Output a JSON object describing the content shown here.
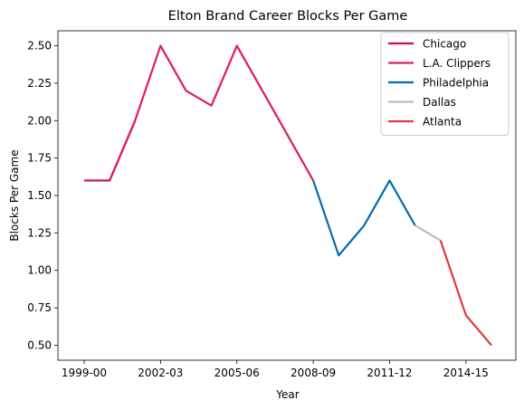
{
  "chart_data": {
    "type": "line",
    "title": "Elton Brand Career Blocks Per Game",
    "xlabel": "Year",
    "ylabel": "Blocks Per Game",
    "ylim": [
      0.4,
      2.6
    ],
    "grid": false,
    "legend_position": "top-right",
    "x_tick_labels": [
      "1999-00",
      "2002-03",
      "2005-06",
      "2008-09",
      "2011-12",
      "2014-15"
    ],
    "y_tick_labels": [
      "0.50",
      "0.75",
      "1.00",
      "1.25",
      "1.50",
      "1.75",
      "2.00",
      "2.25",
      "2.50"
    ],
    "seasons": [
      "1999-00",
      "2000-01",
      "2001-02",
      "2002-03",
      "2003-04",
      "2004-05",
      "2005-06",
      "2006-07",
      "2007-08",
      "2008-09",
      "2009-10",
      "2010-11",
      "2011-12",
      "2012-13",
      "2013-14",
      "2014-15",
      "2015-16"
    ],
    "series": [
      {
        "name": "Chicago",
        "color": "#c8103e",
        "x": [
          "1999-00",
          "2000-01",
          "2001-02"
        ],
        "values": [
          1.6,
          1.6,
          2.0
        ]
      },
      {
        "name": "L.A. Clippers",
        "color": "#e31a59",
        "x": [
          "2000-01",
          "2001-02",
          "2002-03",
          "2003-04",
          "2004-05",
          "2005-06",
          "2006-07",
          "2007-08",
          "2008-09"
        ],
        "values": [
          1.6,
          2.0,
          2.5,
          2.2,
          2.1,
          2.5,
          2.2,
          1.9,
          1.6
        ]
      },
      {
        "name": "Philadelphia",
        "color": "#006bb6",
        "x": [
          "2008-09",
          "2009-10",
          "2010-11",
          "2011-12",
          "2012-13"
        ],
        "values": [
          1.6,
          1.1,
          1.3,
          1.6,
          1.3
        ]
      },
      {
        "name": "Dallas",
        "color": "#bbbbbb",
        "x": [
          "2012-13",
          "2013-14"
        ],
        "values": [
          1.3,
          1.2
        ]
      },
      {
        "name": "Atlanta",
        "color": "#e03a3e",
        "x": [
          "2013-14",
          "2014-15",
          "2015-16"
        ],
        "values": [
          1.2,
          0.7,
          0.5
        ]
      }
    ]
  }
}
